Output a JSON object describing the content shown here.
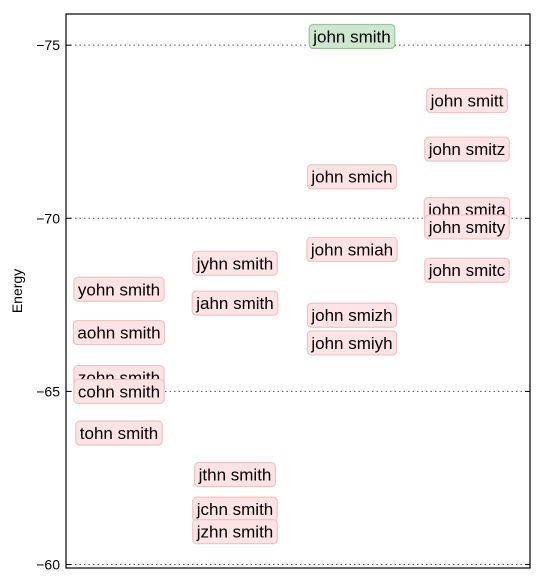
{
  "chart_data": {
    "type": "scatter",
    "ylabel": "Energy",
    "xlabel": "",
    "ylim": [
      -75.9,
      -59.9
    ],
    "yticks": [
      -75,
      -70,
      -65,
      -60
    ],
    "ytick_labels": [
      "−75",
      "−70",
      "−65",
      "−60"
    ],
    "grid": "horizontal dotted at y ticks",
    "label_box_color": "#fde3e3",
    "label_border_color": "#f0c4c4",
    "highlight_box_color": "#cfe6cf",
    "highlight_border_color": "#9cc39c",
    "points": [
      {
        "column": 2,
        "y": -75.25,
        "label": "john smith",
        "highlight": true
      },
      {
        "column": 0,
        "y": -67.95,
        "label": "yohn smith",
        "highlight": false
      },
      {
        "column": 0,
        "y": -66.7,
        "label": "aohn smith",
        "highlight": false
      },
      {
        "column": 0,
        "y": -65.4,
        "label": "zohn smith",
        "highlight": false
      },
      {
        "column": 0,
        "y": -65.0,
        "label": "cohn smith",
        "highlight": false
      },
      {
        "column": 0,
        "y": -63.8,
        "label": "tohn smith",
        "highlight": false
      },
      {
        "column": 1,
        "y": -68.7,
        "label": "jyhn smith",
        "highlight": false
      },
      {
        "column": 1,
        "y": -67.55,
        "label": "jahn smith",
        "highlight": false
      },
      {
        "column": 1,
        "y": -62.6,
        "label": "jthn smith",
        "highlight": false
      },
      {
        "column": 1,
        "y": -61.6,
        "label": "jchn smith",
        "highlight": false
      },
      {
        "column": 1,
        "y": -60.95,
        "label": "jzhn smith",
        "highlight": false
      },
      {
        "column": 2,
        "y": -71.2,
        "label": "john smich",
        "highlight": false
      },
      {
        "column": 2,
        "y": -69.1,
        "label": "john smiah",
        "highlight": false
      },
      {
        "column": 2,
        "y": -67.2,
        "label": "john smizh",
        "highlight": false
      },
      {
        "column": 2,
        "y": -66.4,
        "label": "john smiyh",
        "highlight": false
      },
      {
        "column": 3,
        "y": -73.4,
        "label": "john smitt",
        "highlight": false
      },
      {
        "column": 3,
        "y": -72.0,
        "label": "john smitz",
        "highlight": false
      },
      {
        "column": 3,
        "y": -70.25,
        "label": "john smita",
        "highlight": false
      },
      {
        "column": 3,
        "y": -69.75,
        "label": "john smity",
        "highlight": false
      },
      {
        "column": 3,
        "y": -68.5,
        "label": "john smitc",
        "highlight": false
      }
    ]
  }
}
